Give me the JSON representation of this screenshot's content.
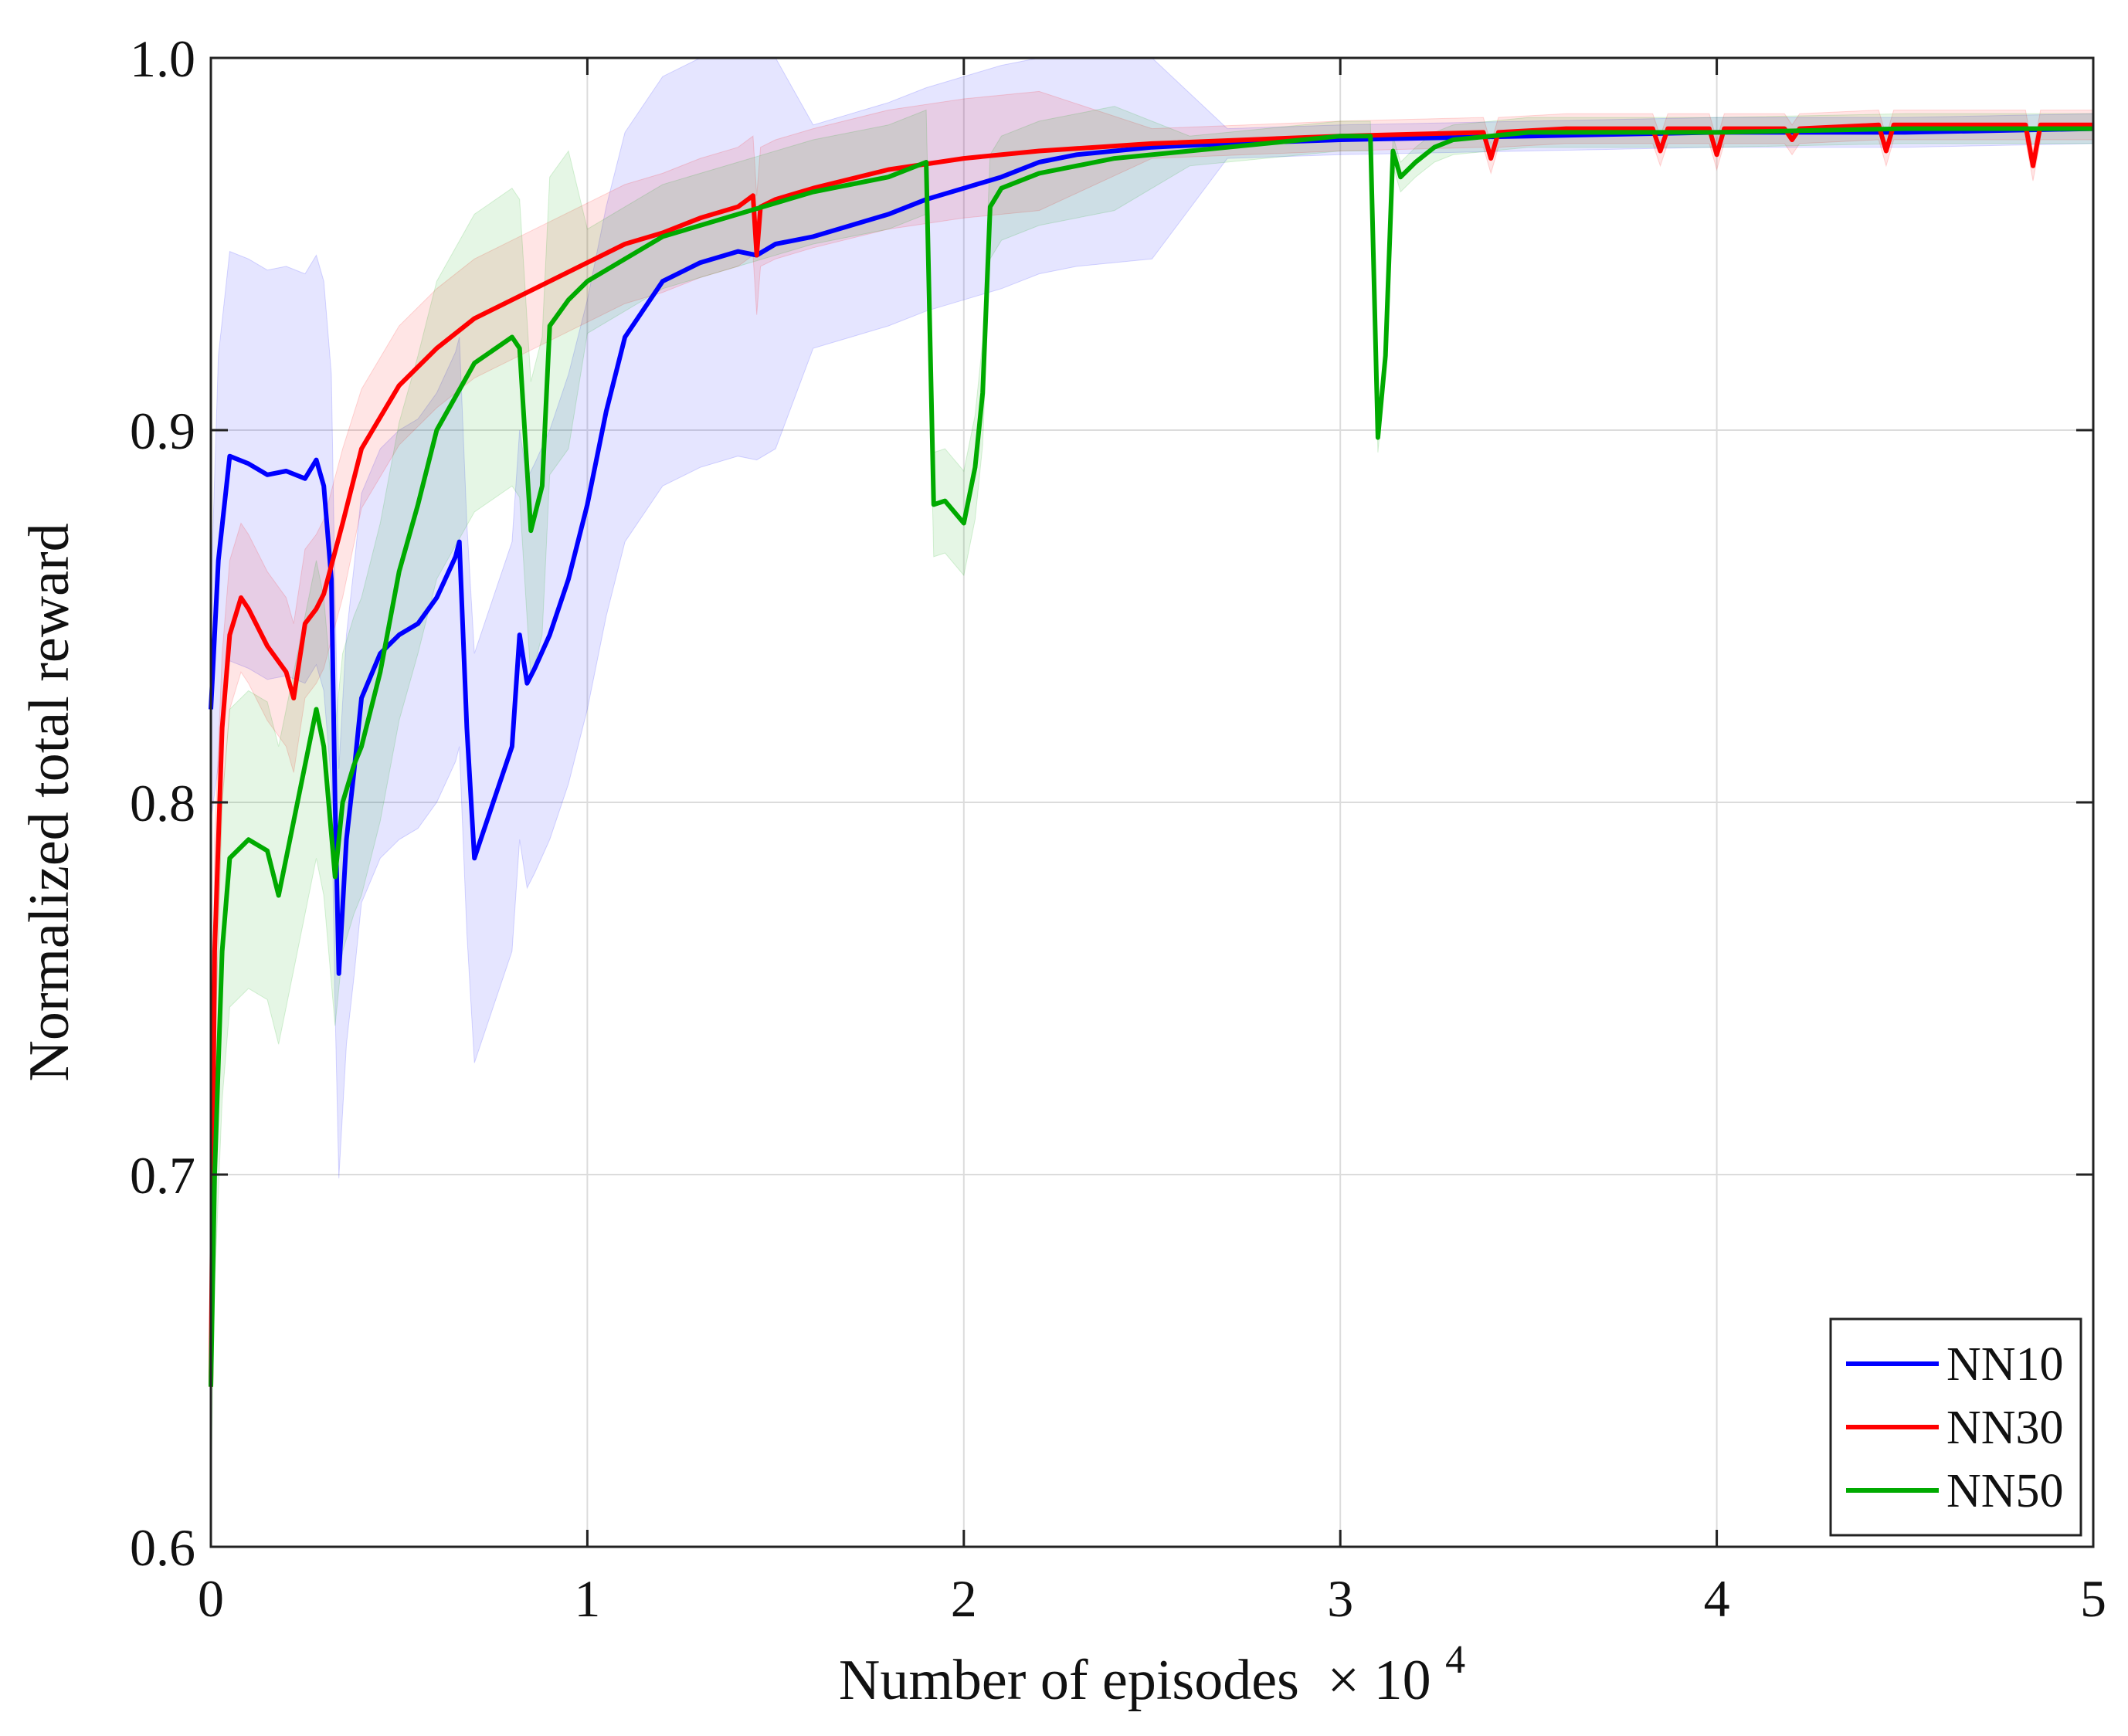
{
  "chart_data": {
    "type": "line",
    "title": "",
    "xlabel": "Number of episodes",
    "xlabel_multiplier": "× 10",
    "xlabel_exponent": "4",
    "ylabel": "Normalized total reward",
    "xlim": [
      0,
      5
    ],
    "ylim": [
      0.6,
      1.0
    ],
    "xticks": [
      0,
      1,
      2,
      3,
      4,
      5
    ],
    "xtick_labels": [
      "0",
      "1",
      "2",
      "3",
      "4",
      "5"
    ],
    "yticks": [
      0.6,
      0.7,
      0.8,
      0.9,
      1.0
    ],
    "ytick_labels": [
      "0.6",
      "0.7",
      "0.8",
      "0.9",
      "1.0"
    ],
    "grid": true,
    "legend_position": "bottom-right",
    "series": [
      {
        "name": "NN10",
        "color": "#0000ff",
        "x": [
          0.0,
          0.02,
          0.05,
          0.1,
          0.15,
          0.2,
          0.25,
          0.28,
          0.3,
          0.32,
          0.33,
          0.34,
          0.36,
          0.38,
          0.4,
          0.45,
          0.5,
          0.55,
          0.6,
          0.65,
          0.66,
          0.68,
          0.7,
          0.75,
          0.8,
          0.82,
          0.84,
          0.86,
          0.9,
          0.95,
          1.0,
          1.05,
          1.1,
          1.2,
          1.3,
          1.4,
          1.45,
          1.5,
          1.6,
          1.7,
          1.8,
          1.9,
          2.0,
          2.1,
          2.2,
          2.3,
          2.5,
          2.7,
          3.0,
          3.5,
          4.0,
          4.5,
          5.0
        ],
        "y": [
          0.825,
          0.865,
          0.893,
          0.891,
          0.888,
          0.889,
          0.887,
          0.892,
          0.885,
          0.86,
          0.8,
          0.754,
          0.79,
          0.808,
          0.828,
          0.84,
          0.845,
          0.848,
          0.855,
          0.866,
          0.87,
          0.82,
          0.785,
          0.8,
          0.815,
          0.845,
          0.832,
          0.836,
          0.845,
          0.86,
          0.88,
          0.905,
          0.925,
          0.94,
          0.945,
          0.948,
          0.947,
          0.95,
          0.952,
          0.955,
          0.958,
          0.962,
          0.965,
          0.968,
          0.972,
          0.974,
          0.976,
          0.977,
          0.978,
          0.979,
          0.98,
          0.98,
          0.981
        ]
      },
      {
        "name": "NN30",
        "color": "#ff0000",
        "x": [
          0.0,
          0.01,
          0.03,
          0.05,
          0.08,
          0.1,
          0.15,
          0.2,
          0.22,
          0.25,
          0.28,
          0.3,
          0.35,
          0.4,
          0.5,
          0.6,
          0.7,
          0.8,
          0.9,
          1.0,
          1.1,
          1.2,
          1.3,
          1.4,
          1.44,
          1.45,
          1.46,
          1.5,
          1.6,
          1.8,
          2.0,
          2.2,
          2.5,
          3.0,
          3.38,
          3.4,
          3.42,
          3.6,
          3.83,
          3.85,
          3.87,
          3.98,
          4.0,
          4.02,
          4.18,
          4.2,
          4.22,
          4.43,
          4.45,
          4.47,
          4.82,
          4.84,
          4.86,
          5.0
        ],
        "y": [
          0.643,
          0.76,
          0.82,
          0.845,
          0.855,
          0.852,
          0.842,
          0.835,
          0.828,
          0.848,
          0.852,
          0.856,
          0.875,
          0.895,
          0.912,
          0.922,
          0.93,
          0.935,
          0.94,
          0.945,
          0.95,
          0.953,
          0.957,
          0.96,
          0.963,
          0.947,
          0.96,
          0.962,
          0.965,
          0.97,
          0.973,
          0.975,
          0.977,
          0.979,
          0.98,
          0.973,
          0.98,
          0.981,
          0.981,
          0.975,
          0.981,
          0.981,
          0.974,
          0.981,
          0.981,
          0.978,
          0.981,
          0.982,
          0.975,
          0.982,
          0.982,
          0.971,
          0.982,
          0.982
        ]
      },
      {
        "name": "NN50",
        "color": "#00aa00",
        "x": [
          0.0,
          0.01,
          0.03,
          0.05,
          0.1,
          0.15,
          0.18,
          0.2,
          0.25,
          0.28,
          0.3,
          0.33,
          0.35,
          0.38,
          0.4,
          0.45,
          0.5,
          0.55,
          0.6,
          0.7,
          0.8,
          0.82,
          0.85,
          0.88,
          0.9,
          0.95,
          1.0,
          1.1,
          1.2,
          1.4,
          1.6,
          1.8,
          1.9,
          1.92,
          1.95,
          2.0,
          2.03,
          2.05,
          2.07,
          2.1,
          2.2,
          2.4,
          2.6,
          2.8,
          3.0,
          3.08,
          3.1,
          3.12,
          3.14,
          3.16,
          3.2,
          3.25,
          3.3,
          3.5,
          4.0,
          4.5,
          5.0
        ],
        "y": [
          0.643,
          0.7,
          0.76,
          0.785,
          0.79,
          0.787,
          0.775,
          0.785,
          0.81,
          0.825,
          0.815,
          0.78,
          0.8,
          0.81,
          0.815,
          0.835,
          0.862,
          0.88,
          0.9,
          0.918,
          0.925,
          0.922,
          0.873,
          0.885,
          0.928,
          0.935,
          0.94,
          0.946,
          0.952,
          0.958,
          0.964,
          0.968,
          0.972,
          0.88,
          0.881,
          0.875,
          0.89,
          0.91,
          0.96,
          0.965,
          0.969,
          0.973,
          0.975,
          0.977,
          0.979,
          0.979,
          0.898,
          0.92,
          0.975,
          0.968,
          0.972,
          0.976,
          0.978,
          0.98,
          0.98,
          0.981,
          0.981
        ]
      }
    ]
  }
}
